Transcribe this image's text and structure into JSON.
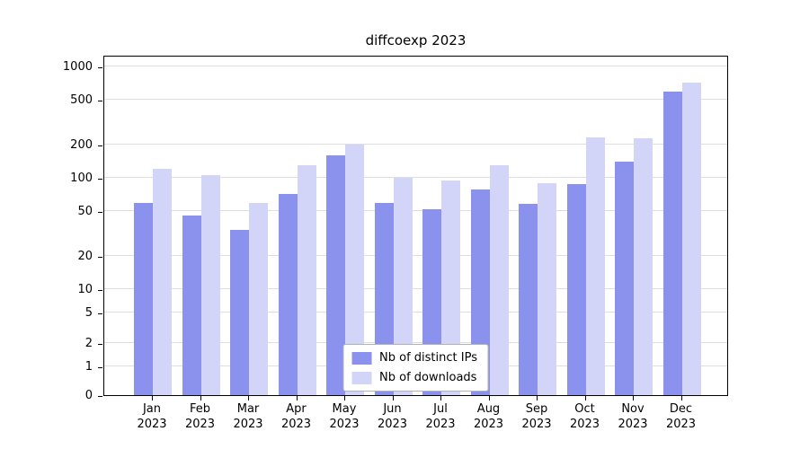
{
  "title": "diffcoexp 2023",
  "chart_data": {
    "type": "bar",
    "title": "diffcoexp 2023",
    "xlabel": "",
    "ylabel": "",
    "yscale": "log",
    "grid": true,
    "legend_position": "inside-bottom-center",
    "categories": [
      "Jan",
      "Feb",
      "Mar",
      "Apr",
      "May",
      "Jun",
      "Jul",
      "Aug",
      "Sep",
      "Oct",
      "Nov",
      "Dec"
    ],
    "year": "2023",
    "yticks": [
      0,
      1,
      2,
      5,
      10,
      20,
      50,
      100,
      200,
      500,
      1000
    ],
    "series": [
      {
        "name": "Nb of distinct IPs",
        "color": "#8b92ee",
        "values": [
          60,
          46,
          34,
          72,
          160,
          60,
          52,
          78,
          58,
          88,
          140,
          600
        ]
      },
      {
        "name": "Nb of downloads",
        "color": "#d2d4f8",
        "values": [
          120,
          105,
          60,
          130,
          200,
          100,
          95,
          130,
          90,
          230,
          225,
          720
        ]
      }
    ]
  }
}
